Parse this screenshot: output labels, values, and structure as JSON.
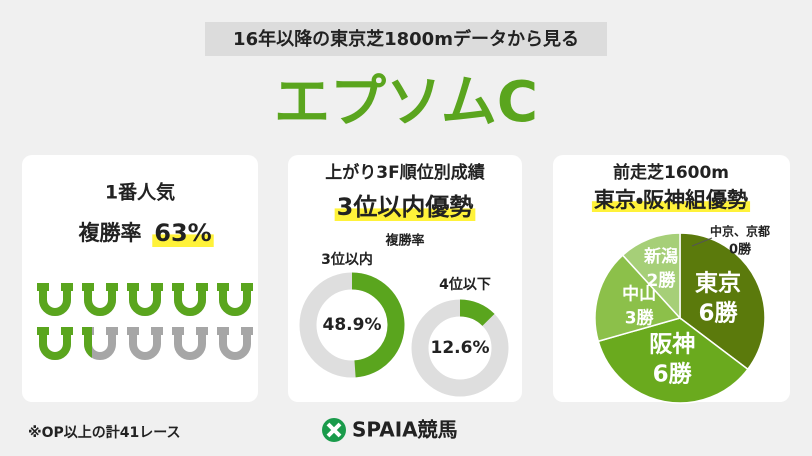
{
  "header": {
    "subtitle": "16年以降の東京芝1800mデータから見る",
    "title": "エプソムC"
  },
  "favorite": {
    "label": "1番人気",
    "metric": "複勝率",
    "value": 63,
    "value_label": "63%",
    "color": "#5aa51e"
  },
  "last3f": {
    "title": "上がり3F順位別成績",
    "headline": "3位以内優勢",
    "metric": "複勝率",
    "lim": [
      0,
      100
    ],
    "color": "#5aa51e",
    "series": [
      {
        "name": "3位以内",
        "value": 48.9,
        "value_label": "48.9%"
      },
      {
        "name": "4位以下",
        "value": 12.6,
        "value_label": "12.6%"
      }
    ]
  },
  "prev_race": {
    "type": "pie",
    "title": "前走芝1600m",
    "headline": "東京・阪神組優勢",
    "categories": [
      "東京",
      "阪神",
      "中山",
      "新潟",
      "中京、京都"
    ],
    "values": [
      6,
      6,
      3,
      2,
      0
    ],
    "value_labels": [
      "6勝",
      "6勝",
      "3勝",
      "2勝",
      "0勝"
    ],
    "colors": [
      "#5b7a0c",
      "#6aaa1e",
      "#8cc04a",
      "#a6cf78",
      "#c8e0a8"
    ]
  },
  "footer": {
    "note": "※OP以上の計41レース",
    "logo": "SPAIA競馬"
  }
}
